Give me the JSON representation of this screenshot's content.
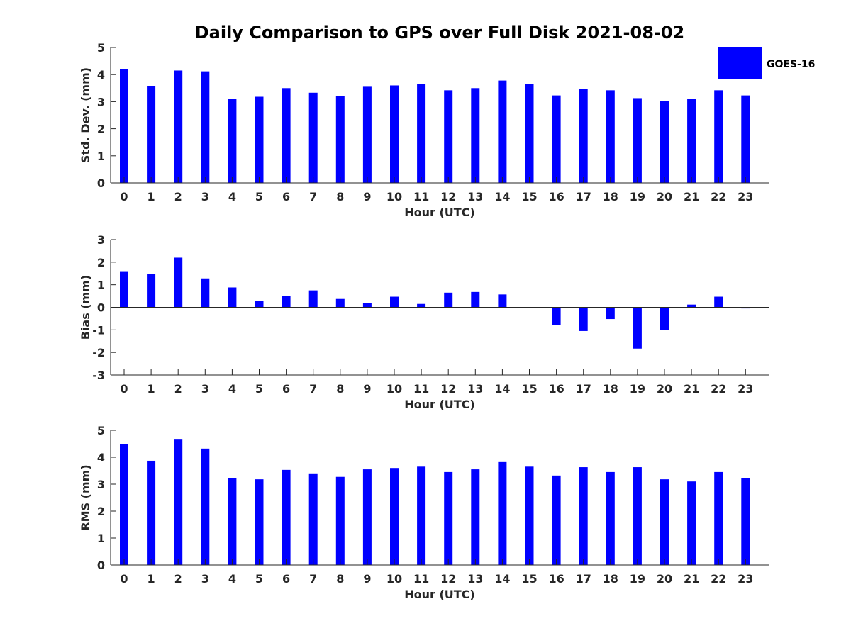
{
  "figure": {
    "title": "Daily Comparison to GPS over Full Disk 2021-08-02"
  },
  "legend": {
    "entries": [
      {
        "name": "GOES-16",
        "color": "#0000ff"
      }
    ],
    "placement": "top-right"
  },
  "colors": {
    "bar": "#0000ff",
    "axis": "#262626"
  },
  "chart_data": [
    {
      "type": "bar",
      "title": "Daily Comparison to GPS over Full Disk 2021-08-02",
      "xlabel": "Hour (UTC)",
      "ylabel": "Std. Dev. (mm)",
      "categories": [
        "0",
        "1",
        "2",
        "3",
        "4",
        "5",
        "6",
        "7",
        "8",
        "9",
        "10",
        "11",
        "12",
        "13",
        "14",
        "15",
        "16",
        "17",
        "18",
        "19",
        "20",
        "21",
        "22",
        "23"
      ],
      "ylim": [
        0,
        5
      ],
      "yticks": [
        "0",
        "1",
        "2",
        "3",
        "4",
        "5"
      ],
      "grid": false,
      "series": [
        {
          "name": "GOES-16",
          "values": [
            4.2,
            3.57,
            4.15,
            4.12,
            3.1,
            3.18,
            3.5,
            3.33,
            3.22,
            3.55,
            3.6,
            3.65,
            3.42,
            3.5,
            3.78,
            3.65,
            3.23,
            3.47,
            3.42,
            3.13,
            3.02,
            3.1,
            3.42,
            3.23
          ]
        }
      ]
    },
    {
      "type": "bar",
      "xlabel": "Hour (UTC)",
      "ylabel": "Bias (mm)",
      "categories": [
        "0",
        "1",
        "2",
        "3",
        "4",
        "5",
        "6",
        "7",
        "8",
        "9",
        "10",
        "11",
        "12",
        "13",
        "14",
        "15",
        "16",
        "17",
        "18",
        "19",
        "20",
        "21",
        "22",
        "23"
      ],
      "ylim": [
        -3,
        3
      ],
      "yticks": [
        "-3",
        "-2",
        "-1",
        "0",
        "1",
        "2",
        "3"
      ],
      "grid": false,
      "series": [
        {
          "name": "GOES-16",
          "values": [
            1.6,
            1.48,
            2.2,
            1.28,
            0.88,
            0.28,
            0.5,
            0.75,
            0.37,
            0.18,
            0.47,
            0.15,
            0.65,
            0.68,
            0.57,
            0.0,
            -0.8,
            -1.05,
            -0.52,
            -1.83,
            -1.02,
            0.12,
            0.47,
            -0.05
          ]
        }
      ]
    },
    {
      "type": "bar",
      "xlabel": "Hour (UTC)",
      "ylabel": "RMS (mm)",
      "categories": [
        "0",
        "1",
        "2",
        "3",
        "4",
        "5",
        "6",
        "7",
        "8",
        "9",
        "10",
        "11",
        "12",
        "13",
        "14",
        "15",
        "16",
        "17",
        "18",
        "19",
        "20",
        "21",
        "22",
        "23"
      ],
      "ylim": [
        0,
        5
      ],
      "yticks": [
        "0",
        "1",
        "2",
        "3",
        "4",
        "5"
      ],
      "grid": false,
      "series": [
        {
          "name": "GOES-16",
          "values": [
            4.5,
            3.87,
            4.68,
            4.32,
            3.22,
            3.18,
            3.53,
            3.4,
            3.27,
            3.55,
            3.6,
            3.65,
            3.45,
            3.55,
            3.82,
            3.65,
            3.32,
            3.63,
            3.45,
            3.63,
            3.18,
            3.1,
            3.45,
            3.23
          ]
        }
      ]
    }
  ]
}
